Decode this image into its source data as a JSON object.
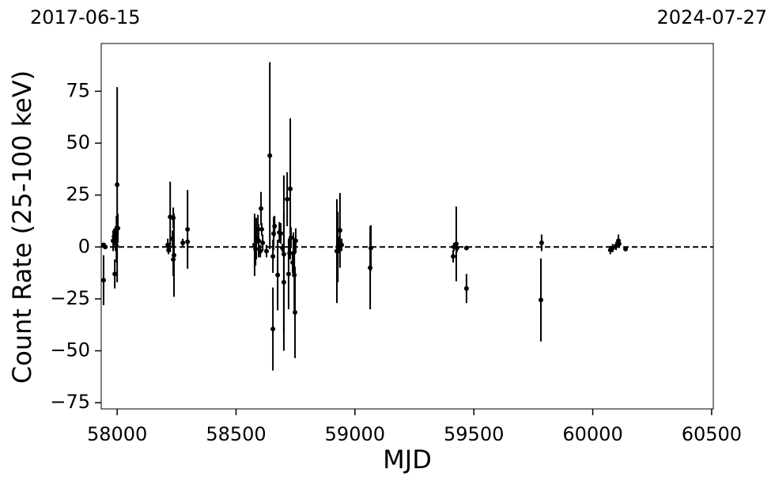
{
  "chart_data": {
    "type": "errorbar",
    "xlabel": "MJD",
    "ylabel": "Count Rate (25-100 keV)",
    "top_labels": [
      "2017-06-15",
      "2024-07-27"
    ],
    "xlim": [
      57933,
      60507
    ],
    "ylim": [
      -78,
      98
    ],
    "xticks": [
      58000,
      58500,
      59000,
      59500,
      60000,
      60500
    ],
    "yticks": [
      {
        "value": -75,
        "label": "−75"
      },
      {
        "value": -50,
        "label": "−50"
      },
      {
        "value": -25,
        "label": "−25"
      },
      0,
      25,
      50,
      75
    ],
    "reference_line": 0,
    "series": [
      {
        "color": "#000000",
        "x": [
          57943,
          57943,
          57950,
          57983,
          57987,
          57990,
          57993,
          57997,
          58000,
          58003,
          57997,
          58213,
          58216,
          58223,
          58236,
          58233,
          58236,
          58239,
          58276,
          58296,
          58296,
          58578,
          58582,
          58585,
          58592,
          58595,
          58602,
          58605,
          58608,
          58612,
          58628,
          58642,
          58655,
          58655,
          58662,
          58658,
          58675,
          58682,
          58688,
          58695,
          58701,
          58701,
          58715,
          58721,
          58725,
          58728,
          58731,
          58738,
          58741,
          58745,
          58748,
          58751,
          58924,
          58928,
          58934,
          58937,
          58944,
          59064,
          59067,
          59413,
          59416,
          59426,
          59429,
          59469,
          59469,
          59782,
          59785,
          60074,
          60084,
          60098,
          60108,
          60111,
          60138
        ],
        "values": [
          -16,
          1,
          0,
          3,
          5,
          -13,
          4,
          7,
          30,
          9,
          0.5,
          1,
          -1.5,
          14.5,
          14,
          4,
          -6,
          -4,
          2,
          8.5,
          2.5,
          1,
          -1,
          4,
          8.5,
          3,
          -2,
          18.5,
          8.5,
          2,
          -2,
          44,
          -39.5,
          -4.5,
          10,
          6.5,
          -13.5,
          7,
          6.5,
          -0.5,
          -17,
          -3.5,
          23,
          -13,
          -3,
          28,
          4.5,
          -7.5,
          -3,
          -13.5,
          -31.5,
          3,
          -2,
          0,
          1,
          8,
          1,
          -10,
          -0.5,
          -4.5,
          0,
          1.5,
          -0.5,
          -0.5,
          -20,
          -25.5,
          2,
          -1.5,
          -0.5,
          0.5,
          3,
          1.5,
          -1
        ],
        "errors": [
          12,
          1,
          1,
          5,
          4,
          7,
          6,
          8,
          47,
          7,
          8,
          3,
          2,
          17,
          5,
          4,
          8,
          20,
          2,
          19,
          2,
          15,
          8,
          10,
          7,
          8,
          3,
          8,
          3,
          4,
          3,
          45,
          20,
          8,
          5,
          8,
          17,
          5,
          5,
          2,
          33,
          38,
          13,
          17,
          3,
          34,
          5,
          5,
          10,
          18,
          22,
          6,
          25,
          17,
          4,
          18,
          3,
          20,
          11,
          3,
          2,
          18,
          2,
          1,
          7,
          20,
          4,
          2,
          2,
          2,
          3,
          2,
          1
        ]
      }
    ]
  }
}
